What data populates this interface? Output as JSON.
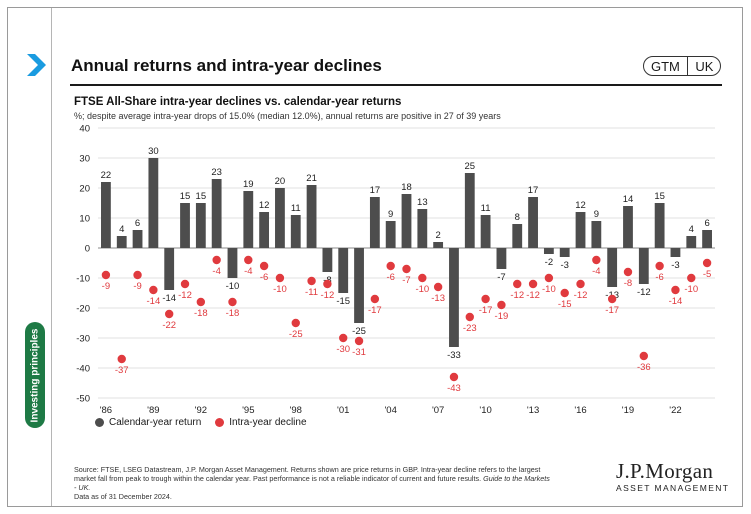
{
  "header": {
    "title": "Annual returns and intra-year declines",
    "badge_left": "GTM",
    "badge_right": "UK"
  },
  "side_tab": "Investing principles",
  "colors": {
    "bar": "#4d4d4d",
    "dot": "#e03a3e",
    "accent": "#1a9be0",
    "tab": "#1e7a45"
  },
  "chart_data": {
    "type": "bar",
    "title": "FTSE All-Share intra-year declines vs. calendar-year returns",
    "subtitle": "%; despite average intra-year drops of 15.0% (median 12.0%), annual returns are positive in 27 of 39 years",
    "x": [
      1986,
      1987,
      1988,
      1989,
      1990,
      1991,
      1992,
      1993,
      1994,
      1995,
      1996,
      1997,
      1998,
      1999,
      2000,
      2001,
      2002,
      2003,
      2004,
      2005,
      2006,
      2007,
      2008,
      2009,
      2010,
      2011,
      2012,
      2013,
      2014,
      2015,
      2016,
      2017,
      2018,
      2019,
      2020,
      2021,
      2022,
      2023,
      2024
    ],
    "x_tick_labels": [
      "'86",
      "'89",
      "'92",
      "'95",
      "'98",
      "'01",
      "'04",
      "'07",
      "'10",
      "'13",
      "'16",
      "'19",
      "'22"
    ],
    "ylim": [
      -50,
      40
    ],
    "yticks": [
      40,
      30,
      20,
      10,
      0,
      -10,
      -20,
      -30,
      -40,
      -50
    ],
    "grid": true,
    "legend_position": "bottom-left",
    "series": [
      {
        "name": "Calendar-year return",
        "kind": "bar",
        "values": [
          22,
          4,
          6,
          30,
          -14,
          15,
          15,
          23,
          -10,
          19,
          12,
          20,
          11,
          21,
          -8,
          -15,
          -25,
          17,
          9,
          18,
          13,
          2,
          -33,
          25,
          11,
          -7,
          8,
          17,
          -2,
          -3,
          12,
          9,
          -13,
          14,
          -12,
          15,
          -3,
          4,
          6
        ]
      },
      {
        "name": "Intra-year decline",
        "kind": "dot",
        "values": [
          -9,
          -37,
          -9,
          -14,
          -22,
          -12,
          -18,
          -4,
          -18,
          -4,
          -6,
          -10,
          -25,
          -11,
          -12,
          -30,
          -31,
          -17,
          -6,
          -7,
          -10,
          -13,
          -43,
          -23,
          -17,
          -19,
          -12,
          -12,
          -10,
          -15,
          -12,
          -4,
          -17,
          -8,
          -36,
          -6,
          -14,
          -10,
          -5
        ]
      }
    ]
  },
  "footer": {
    "text": "Source: FTSE, LSEG Datastream, J.P. Morgan Asset Management. Returns shown are price returns in GBP. Intra-year decline refers to the largest market fall from peak to trough within the calendar year. Past performance is not a reliable indicator of current and future results.",
    "guide": "Guide to the Markets - UK.",
    "date": "Data as of 31 December 2024."
  },
  "brand": {
    "name": "J.P.Morgan",
    "sub": "ASSET MANAGEMENT"
  }
}
